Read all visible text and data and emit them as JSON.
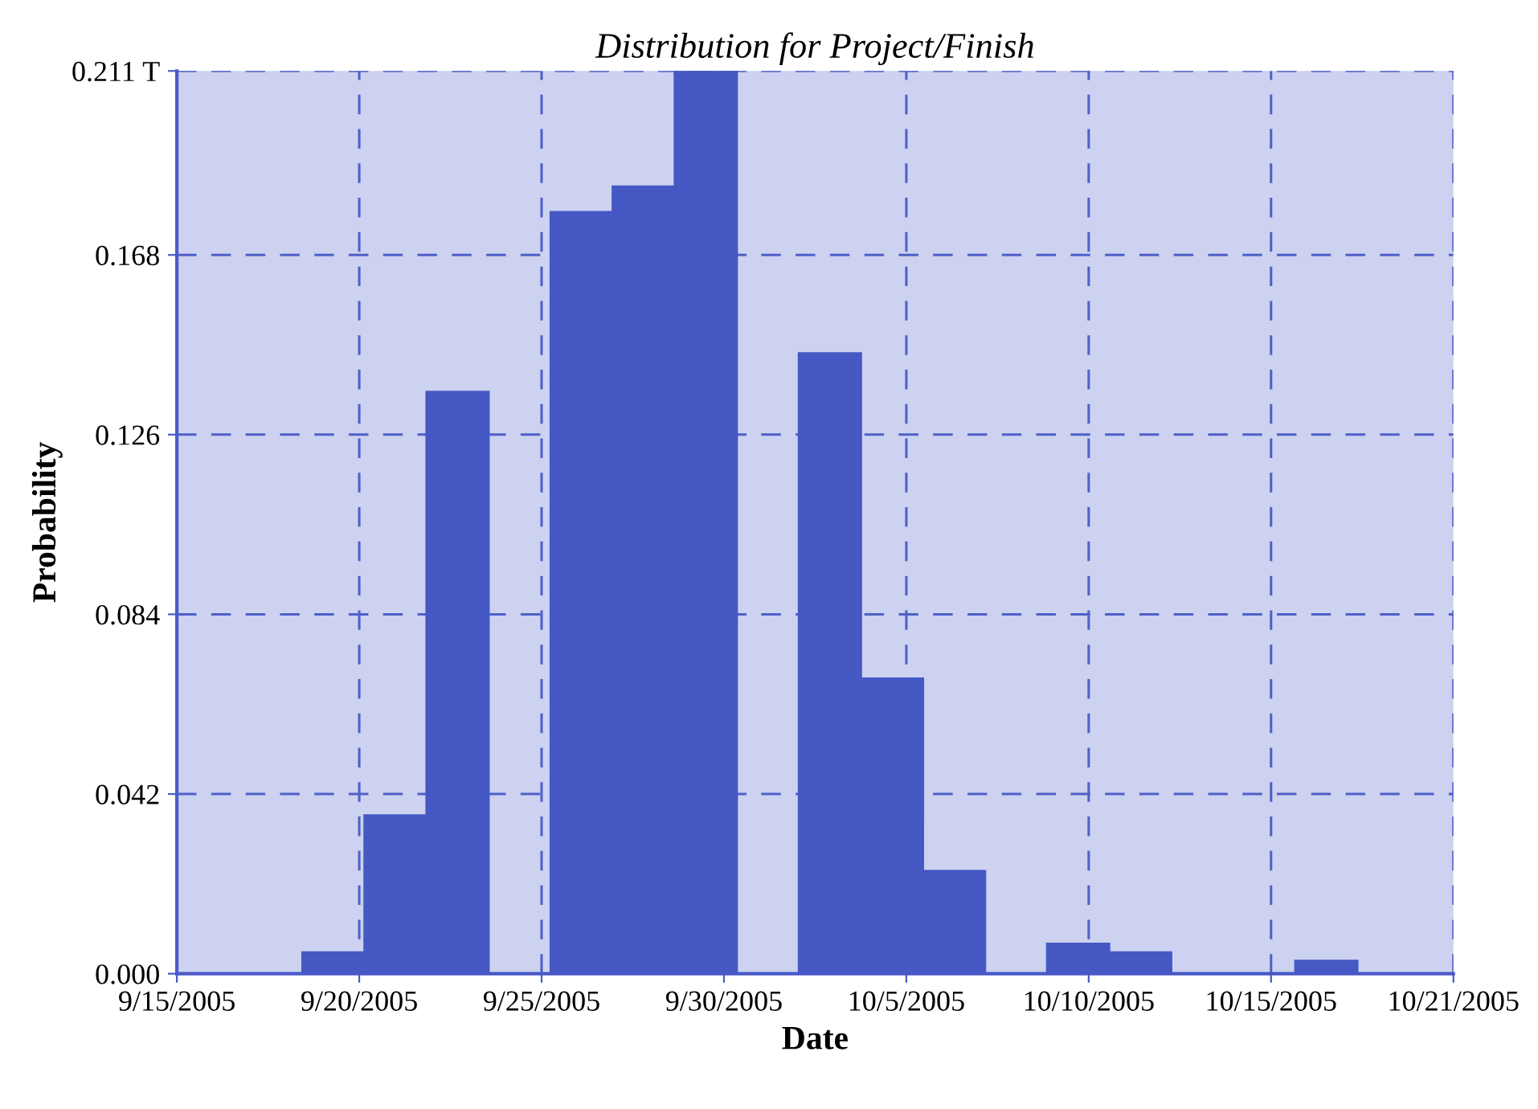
{
  "chart_data": {
    "type": "histogram",
    "title": "Distribution for Project/Finish",
    "xlabel": "Date",
    "ylabel": "Probability",
    "bins": [
      "2005-09-18T13:00",
      "2005-09-20T07:00",
      "2005-09-22T01:00",
      "2005-09-23T19:00",
      "2005-09-25T13:00",
      "2005-09-27T07:00",
      "2005-09-29T01:00",
      "2005-09-30T19:00",
      "2005-10-02T13:00",
      "2005-10-04T07:00",
      "2005-10-06T01:00",
      "2005-10-07T19:00",
      "2005-10-09T13:00",
      "2005-10-11T07:00",
      "2005-10-13T01:00",
      "2005-10-14T19:00",
      "2005-10-16T13:00",
      "2005-10-18T07:00"
    ],
    "values": [
      0.005,
      0.037,
      0.136,
      0,
      0.178,
      0.184,
      0.211,
      0,
      0.145,
      0.069,
      0.024,
      0,
      0.007,
      0.005,
      0,
      0,
      0.003
    ],
    "color": "#4558c4",
    "xlim": [
      "2005-09-15",
      "2005-10-21"
    ],
    "xticks": [
      {
        "value": "2005-09-15T00:00",
        "label": "9/15/2005"
      },
      {
        "value": "2005-09-20T03:26",
        "label": "9/20/2005"
      },
      {
        "value": "2005-09-25T06:51",
        "label": "9/25/2005"
      },
      {
        "value": "2005-09-30T10:17",
        "label": "9/30/2005"
      },
      {
        "value": "2005-10-05T13:43",
        "label": "10/5/2005"
      },
      {
        "value": "2005-10-10T17:09",
        "label": "10/10/2005"
      },
      {
        "value": "2005-10-15T20:34",
        "label": "10/15/2005"
      },
      {
        "value": "2005-10-21T00:00",
        "label": "10/21/2005"
      }
    ],
    "ylim": [
      0,
      0.211
    ],
    "yticks": [
      {
        "value": 0,
        "label": "0.000"
      },
      {
        "value": 0.042,
        "label": "0.042"
      },
      {
        "value": 0.084,
        "label": "0.084"
      },
      {
        "value": 0.126,
        "label": "0.126"
      },
      {
        "value": 0.168,
        "label": "0.168"
      },
      {
        "value": 0.211,
        "label": "0.211 T"
      }
    ],
    "grid": true
  }
}
